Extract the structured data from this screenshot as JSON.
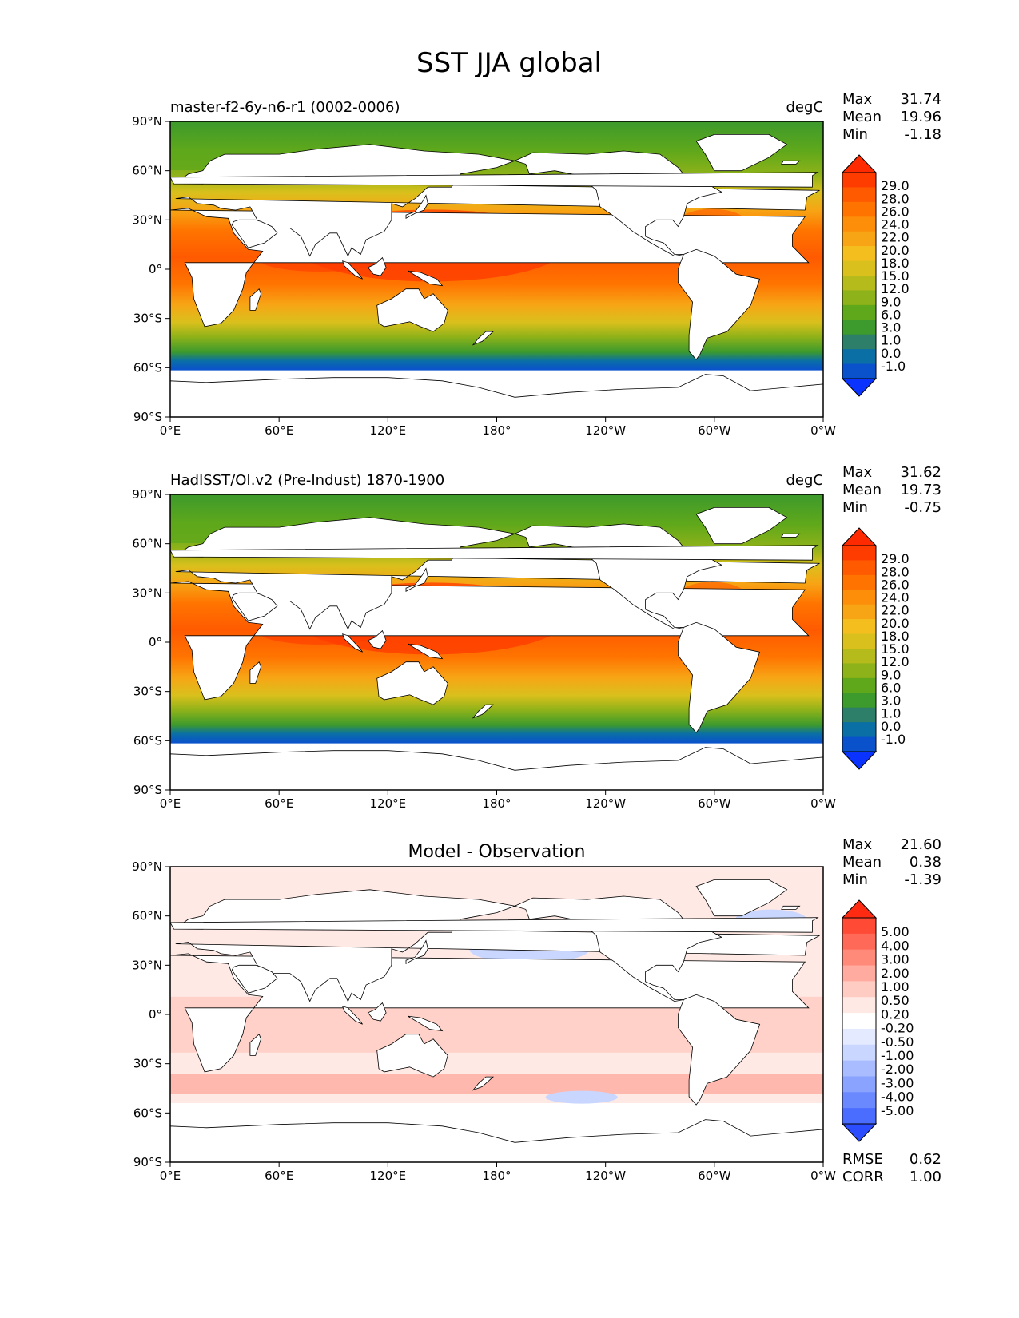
{
  "title": "SST JJA global",
  "lon_ticks": [
    "0°E",
    "60°E",
    "120°E",
    "180°",
    "120°W",
    "60°W",
    "0°W"
  ],
  "lat_ticks": [
    "90°N",
    "60°N",
    "30°N",
    "0°",
    "30°S",
    "60°S",
    "90°S"
  ],
  "panels": [
    {
      "id": "model",
      "left_title": "master-f2-6y-n6-r1 (0002-0006)",
      "center_title": "",
      "units": "degC",
      "stats": [
        {
          "label": "Max",
          "value": "31.74"
        },
        {
          "label": "Mean",
          "value": "19.96"
        },
        {
          "label": "Min",
          "value": "-1.18"
        }
      ],
      "colorbar_levels": [
        "29.0",
        "28.0",
        "26.0",
        "24.0",
        "22.0",
        "20.0",
        "18.0",
        "15.0",
        "12.0",
        "9.0",
        "6.0",
        "3.0",
        "1.0",
        "0.0",
        "-1.0"
      ],
      "colorbar_colors": [
        "#ff2a00",
        "#ff3c00",
        "#ff5a00",
        "#ff7400",
        "#fd8e0a",
        "#f7a515",
        "#f4bf1e",
        "#d9c01c",
        "#b6bb1c",
        "#8eb219",
        "#5fa81b",
        "#3d9a2c",
        "#2d7f6a",
        "#0a6fa5",
        "#0a52cc",
        "#0a33ff"
      ],
      "extra_stats": []
    },
    {
      "id": "obs",
      "left_title": "HadISST/OI.v2 (Pre-Indust) 1870-1900",
      "center_title": "",
      "units": "degC",
      "stats": [
        {
          "label": "Max",
          "value": "31.62"
        },
        {
          "label": "Mean",
          "value": "19.73"
        },
        {
          "label": "Min",
          "value": "-0.75"
        }
      ],
      "colorbar_levels": [
        "29.0",
        "28.0",
        "26.0",
        "24.0",
        "22.0",
        "20.0",
        "18.0",
        "15.0",
        "12.0",
        "9.0",
        "6.0",
        "3.0",
        "1.0",
        "0.0",
        "-1.0"
      ],
      "colorbar_colors": [
        "#ff2a00",
        "#ff3c00",
        "#ff5a00",
        "#ff7400",
        "#fd8e0a",
        "#f7a515",
        "#f4bf1e",
        "#d9c01c",
        "#b6bb1c",
        "#8eb219",
        "#5fa81b",
        "#3d9a2c",
        "#2d7f6a",
        "#0a6fa5",
        "#0a52cc",
        "#0a33ff"
      ],
      "extra_stats": []
    },
    {
      "id": "diff",
      "left_title": "",
      "center_title": "Model - Observation",
      "units": "",
      "stats": [
        {
          "label": "Max",
          "value": "21.60"
        },
        {
          "label": "Mean",
          "value": "0.38"
        },
        {
          "label": "Min",
          "value": "-1.39"
        }
      ],
      "colorbar_levels": [
        "5.00",
        "4.00",
        "3.00",
        "2.00",
        "1.00",
        "0.50",
        "0.20",
        "-0.20",
        "-0.50",
        "-1.00",
        "-2.00",
        "-3.00",
        "-4.00",
        "-5.00"
      ],
      "colorbar_colors": [
        "#ff2a12",
        "#ff4a35",
        "#ff6a58",
        "#ff8a7a",
        "#ffab9f",
        "#ffccc4",
        "#ffe9e5",
        "#ffffff",
        "#e4eaff",
        "#c9d6ff",
        "#a9bcff",
        "#8aa3ff",
        "#6b89ff",
        "#4b6dff",
        "#2b4dff"
      ],
      "extra_stats": [
        {
          "label": "RMSE",
          "value": "0.62"
        },
        {
          "label": "CORR",
          "value": "1.00"
        }
      ]
    }
  ],
  "colors": {
    "warm_core": "#ff3a00",
    "warm": "#ff7a00",
    "mid": "#f4bf1e",
    "temperate": "#8eb219",
    "cool": "#3d9a2c",
    "cold": "#0a52cc",
    "land": "#ffffff",
    "coast": "#000000"
  }
}
